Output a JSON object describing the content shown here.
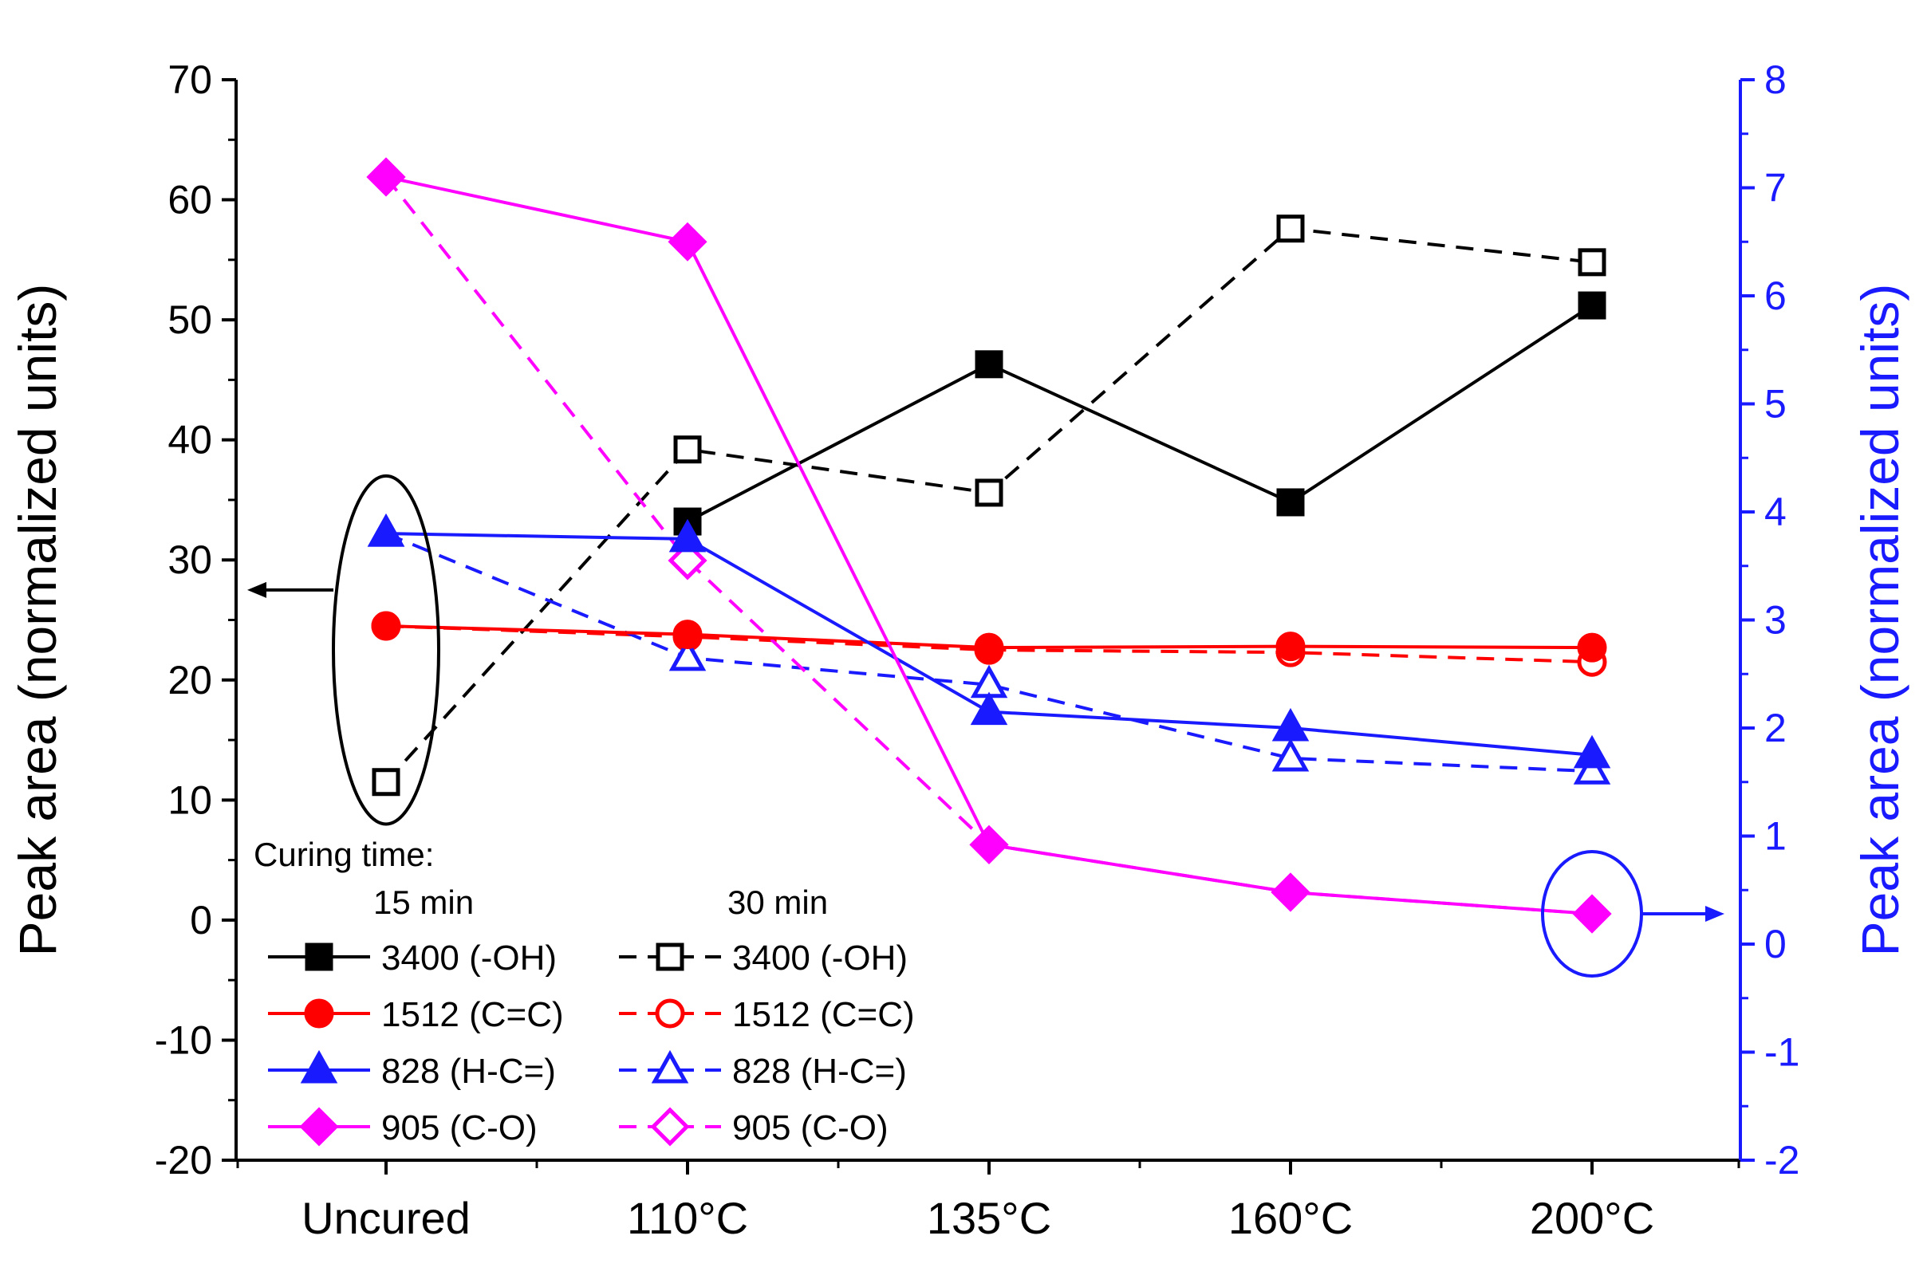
{
  "chart_data": {
    "type": "line",
    "title": "",
    "categories": [
      "Uncured",
      "110°C",
      "135°C",
      "160°C",
      "200°C"
    ],
    "y_left": {
      "label": "Peak area (normalized units)",
      "range": [
        -20,
        70
      ],
      "ticks": [
        "-20",
        "-10",
        "0",
        "10",
        "20",
        "30",
        "40",
        "50",
        "60",
        "70"
      ]
    },
    "y_right": {
      "label": "Peak area (normalized units)",
      "range": [
        -2,
        8
      ],
      "ticks": [
        "-2",
        "-1",
        "0",
        "1",
        "2",
        "3",
        "4",
        "5",
        "6",
        "7",
        "8"
      ]
    },
    "legend": {
      "heading": "Curing time:",
      "col15": "15 min",
      "col30": "30 min",
      "placement": "bottom-left"
    },
    "series": [
      {
        "id": "s3400_15",
        "name": "3400 (-OH)",
        "color": "#000000",
        "marker": "square",
        "filled": true,
        "dash": false,
        "axis": "left",
        "values": [
          null,
          33.2,
          46.3,
          34.8,
          51.2
        ]
      },
      {
        "id": "s3400_30",
        "name": "3400 (-OH)",
        "color": "#000000",
        "marker": "square",
        "filled": false,
        "dash": true,
        "axis": "left",
        "values": [
          11.5,
          39.2,
          35.6,
          57.6,
          54.8
        ]
      },
      {
        "id": "s1512_15",
        "name": "1512 (C=C)",
        "color": "#ff0000",
        "marker": "circle",
        "filled": true,
        "dash": false,
        "axis": "left",
        "values": [
          24.5,
          23.8,
          22.7,
          22.8,
          22.7
        ]
      },
      {
        "id": "s1512_30",
        "name": "1512 (C=C)",
        "color": "#ff0000",
        "marker": "circle",
        "filled": false,
        "dash": true,
        "axis": "left",
        "values": [
          24.5,
          23.6,
          22.5,
          22.3,
          21.5
        ]
      },
      {
        "id": "s828_15",
        "name": "828 (H-C=)",
        "color": "#1a1aff",
        "marker": "triangle",
        "filled": true,
        "dash": false,
        "axis": "right",
        "values": [
          3.8,
          3.75,
          2.15,
          2.0,
          1.75
        ]
      },
      {
        "id": "s828_30",
        "name": "828 (H-C=)",
        "color": "#1a1aff",
        "marker": "triangle",
        "filled": false,
        "dash": true,
        "axis": "right",
        "values": [
          3.8,
          2.65,
          2.4,
          1.72,
          1.6
        ]
      },
      {
        "id": "s905_15",
        "name": "905 (C-O)",
        "color": "#ff00ff",
        "marker": "diamond",
        "filled": true,
        "dash": false,
        "axis": "right",
        "values": [
          7.1,
          6.5,
          0.92,
          0.48,
          0.28
        ]
      },
      {
        "id": "s905_30",
        "name": "905 (C-O)",
        "color": "#ff00ff",
        "marker": "diamond",
        "filled": false,
        "dash": true,
        "axis": "right",
        "values": [
          7.1,
          3.55,
          0.92,
          0.48,
          0.28
        ]
      }
    ],
    "annotations": [
      {
        "id": "left-axis-ellipse",
        "text": "",
        "points_to": "left axis",
        "category": "Uncured"
      },
      {
        "id": "right-axis-ellipse",
        "text": "",
        "points_to": "right axis",
        "category": "200°C"
      }
    ]
  }
}
